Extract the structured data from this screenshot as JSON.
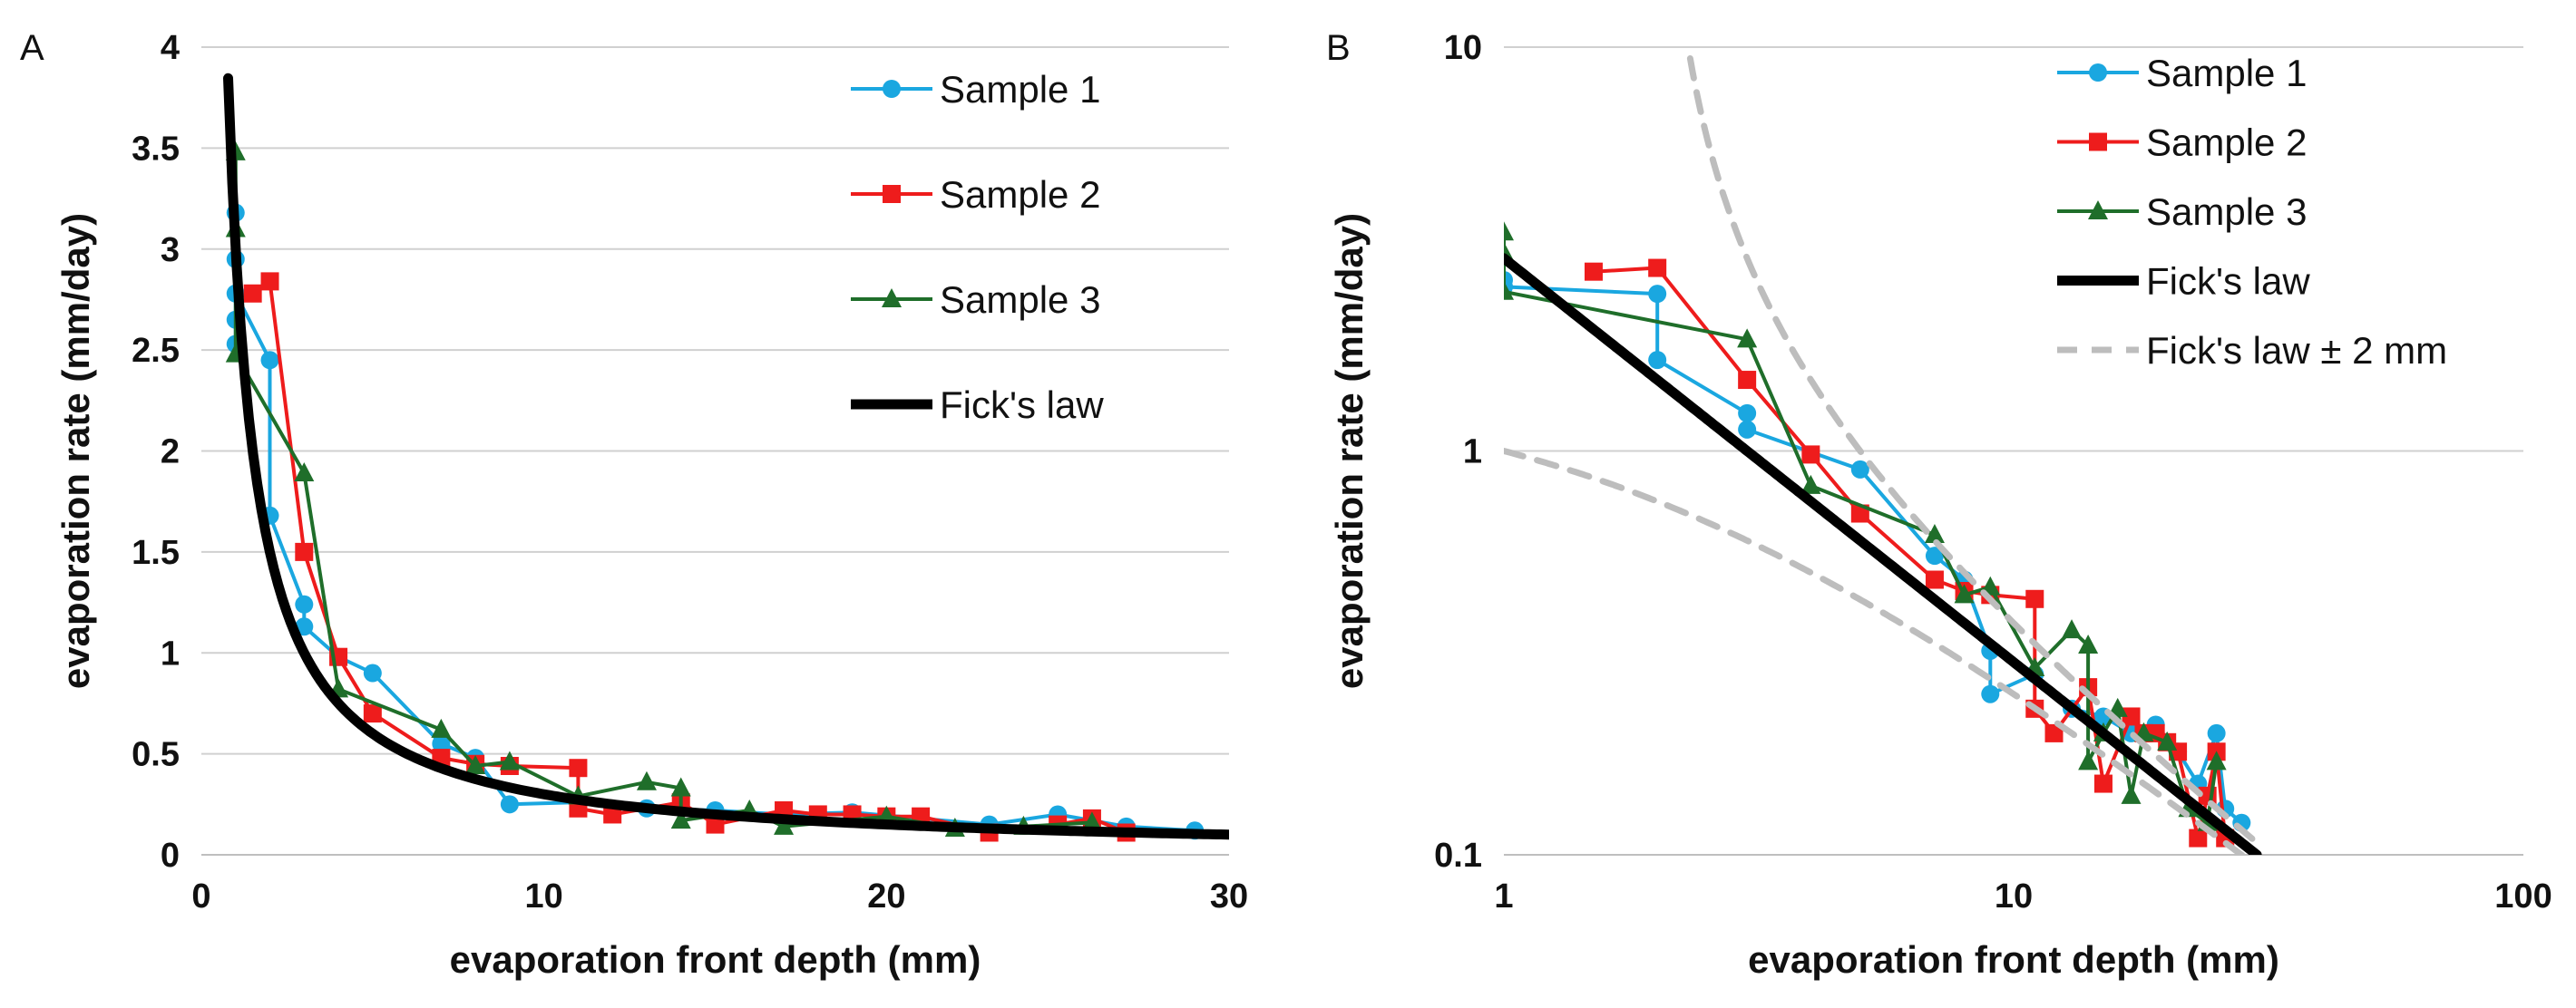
{
  "chart_data": [
    {
      "type": "line",
      "panel_label": "A",
      "xlabel": "evaporation front depth (mm)",
      "ylabel": "evaporation rate (mm/day)",
      "xlim": [
        0,
        30
      ],
      "ylim": [
        0,
        4
      ],
      "xticks": [
        0,
        10,
        20,
        30
      ],
      "yticks": [
        0,
        0.5,
        1,
        1.5,
        2,
        2.5,
        3,
        3.5,
        4
      ],
      "ytick_labels": [
        "0",
        "0.5",
        "1",
        "1.5",
        "2",
        "2.5",
        "3",
        "3.5",
        "4"
      ],
      "grid": "horizontal",
      "legend_position": "top-right",
      "series": [
        {
          "name": "Sample 1",
          "color": "#1aa7e0",
          "marker": "circle",
          "x": [
            1,
            1,
            1,
            1,
            1,
            2,
            2,
            3,
            3,
            4,
            5,
            7,
            8,
            9,
            11,
            13,
            15,
            17,
            19,
            21,
            23,
            25,
            27,
            29
          ],
          "y": [
            2.53,
            2.65,
            2.95,
            3.18,
            2.78,
            2.45,
            1.68,
            1.24,
            1.13,
            0.98,
            0.9,
            0.55,
            0.48,
            0.25,
            0.26,
            0.23,
            0.22,
            0.2,
            0.21,
            0.18,
            0.15,
            0.2,
            0.14,
            0.12
          ]
        },
        {
          "name": "Sample 2",
          "color": "#ee1c1c",
          "marker": "square",
          "x": [
            1.5,
            2,
            3,
            4,
            5,
            7,
            8,
            9,
            11,
            11,
            12,
            14,
            15,
            17,
            18,
            19,
            20,
            21,
            23,
            25,
            26,
            27
          ],
          "y": [
            2.78,
            2.84,
            1.5,
            0.98,
            0.7,
            0.48,
            0.45,
            0.44,
            0.43,
            0.23,
            0.2,
            0.26,
            0.15,
            0.22,
            0.2,
            0.2,
            0.19,
            0.19,
            0.11,
            0.15,
            0.18,
            0.11
          ]
        },
        {
          "name": "Sample 3",
          "color": "#1f6e2a",
          "marker": "triangle",
          "x": [
            1,
            1,
            1,
            3,
            4,
            7,
            8,
            9,
            11,
            13,
            14,
            14,
            16,
            17,
            20,
            22,
            24,
            26
          ],
          "y": [
            3.48,
            3.1,
            2.48,
            1.89,
            0.82,
            0.62,
            0.44,
            0.46,
            0.29,
            0.36,
            0.33,
            0.17,
            0.22,
            0.14,
            0.19,
            0.13,
            0.14,
            0.16
          ]
        },
        {
          "name": "Fick's law",
          "color": "#000000",
          "marker": "none",
          "formula": "3.0/x",
          "x_range": [
            0.78,
            30
          ]
        }
      ]
    },
    {
      "type": "line",
      "panel_label": "B",
      "xlabel": "evaporation front depth (mm)",
      "ylabel": "evaporation rate (mm/day)",
      "xscale": "log",
      "yscale": "log",
      "xlim": [
        1,
        100
      ],
      "ylim": [
        0.1,
        10
      ],
      "xticks": [
        1,
        10,
        100
      ],
      "yticks": [
        0.1,
        1,
        10
      ],
      "ytick_labels": [
        "0.1",
        "1",
        "10"
      ],
      "grid": "horizontal",
      "legend_position": "top-right",
      "series": [
        {
          "name": "Sample 1",
          "color": "#1aa7e0",
          "marker": "circle",
          "x": [
            1,
            1,
            2,
            2,
            3,
            3,
            5,
            7,
            8,
            9,
            9,
            11,
            13,
            15,
            17,
            19,
            21,
            23,
            25,
            26,
            28
          ],
          "y": [
            2.65,
            2.55,
            2.45,
            1.68,
            1.24,
            1.13,
            0.9,
            0.55,
            0.48,
            0.32,
            0.25,
            0.28,
            0.23,
            0.22,
            0.2,
            0.21,
            0.18,
            0.15,
            0.2,
            0.13,
            0.12
          ]
        },
        {
          "name": "Sample 2",
          "color": "#ee1c1c",
          "marker": "square",
          "x": [
            1.5,
            2,
            3,
            4,
            5,
            7,
            8,
            9,
            11,
            11,
            12,
            14,
            15,
            17,
            18,
            19,
            20,
            21,
            23,
            24,
            25,
            26
          ],
          "y": [
            2.78,
            2.84,
            1.5,
            0.98,
            0.7,
            0.48,
            0.45,
            0.44,
            0.43,
            0.23,
            0.2,
            0.26,
            0.15,
            0.22,
            0.2,
            0.2,
            0.19,
            0.18,
            0.11,
            0.14,
            0.18,
            0.11
          ]
        },
        {
          "name": "Sample 3",
          "color": "#1f6e2a",
          "marker": "triangle",
          "x": [
            1,
            1,
            1,
            3,
            4,
            7,
            8,
            9,
            11,
            13,
            14,
            14,
            15,
            16,
            17,
            18,
            20,
            22,
            24,
            25
          ],
          "y": [
            3.48,
            3.1,
            2.48,
            1.89,
            0.82,
            0.62,
            0.44,
            0.46,
            0.29,
            0.36,
            0.33,
            0.17,
            0.2,
            0.23,
            0.14,
            0.2,
            0.19,
            0.13,
            0.12,
            0.17
          ]
        },
        {
          "name": "Fick's law",
          "color": "#000000",
          "marker": "none",
          "formula": "3.0/x",
          "x_range": [
            1,
            30
          ]
        },
        {
          "name": "Fick's law ± 2 mm",
          "color": "#bdbdbd",
          "marker": "none",
          "dash": true,
          "upper_formula": "3.0/(x-2)",
          "upper_x_range": [
            2.32,
            30
          ],
          "lower_formula": "3.0/(x+2)",
          "lower_x_range": [
            1,
            30
          ]
        }
      ]
    }
  ]
}
